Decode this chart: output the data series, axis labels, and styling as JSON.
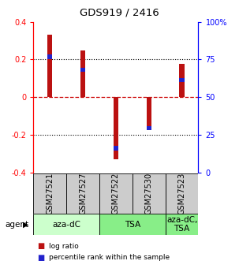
{
  "title": "GDS919 / 2416",
  "samples": [
    "GSM27521",
    "GSM27527",
    "GSM27522",
    "GSM27530",
    "GSM27523"
  ],
  "bar_values": [
    0.33,
    0.25,
    -0.33,
    -0.175,
    0.175
  ],
  "blue_markers": [
    0.215,
    0.145,
    -0.27,
    -0.165,
    0.09
  ],
  "bar_color": "#bb1111",
  "blue_color": "#2222cc",
  "ylim": [
    -0.4,
    0.4
  ],
  "yticks_left": [
    -0.4,
    -0.2,
    0.0,
    0.2,
    0.4
  ],
  "yticks_right": [
    0,
    25,
    50,
    75,
    100
  ],
  "ytick_right_labels": [
    "0",
    "25",
    "50",
    "75",
    "100%"
  ],
  "hlines_dotted": [
    -0.2,
    0.2
  ],
  "hline_dashed": 0.0,
  "groups": [
    {
      "label": "aza-dC",
      "start": 0,
      "end": 2,
      "color": "#ccffcc"
    },
    {
      "label": "TSA",
      "start": 2,
      "end": 4,
      "color": "#88ee88"
    },
    {
      "label": "aza-dC,\nTSA",
      "start": 4,
      "end": 5,
      "color": "#88ee88"
    }
  ],
  "agent_label": "agent",
  "legend_items": [
    {
      "color": "#bb1111",
      "label": "log ratio"
    },
    {
      "color": "#2222cc",
      "label": "percentile rank within the sample"
    }
  ],
  "background_color": "#ffffff",
  "sample_box_color": "#cccccc",
  "bar_width": 0.15
}
